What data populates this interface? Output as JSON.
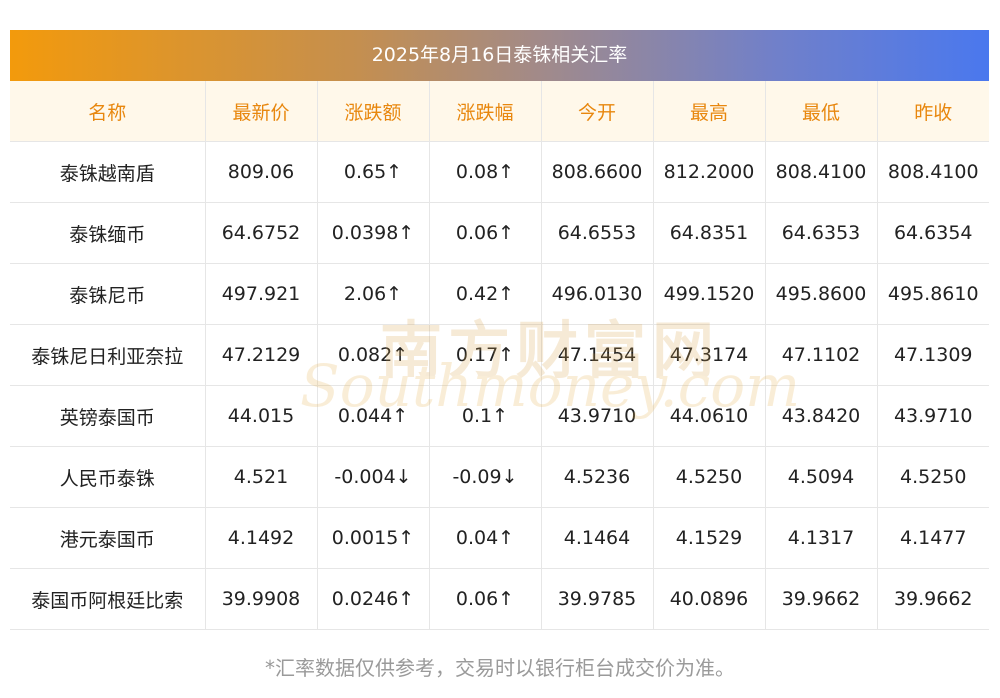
{
  "title": "2025年8月16日泰铢相关汇率",
  "headers": [
    "名称",
    "最新价",
    "涨跌额",
    "涨跌幅",
    "今开",
    "最高",
    "最低",
    "昨收"
  ],
  "rows": [
    {
      "name": "泰铢越南盾",
      "latest": "809.06",
      "change": "0.65↑",
      "pct": "0.08↑",
      "open": "808.6600",
      "high": "812.2000",
      "low": "808.4100",
      "prev": "808.4100",
      "dir": "up"
    },
    {
      "name": "泰铢缅币",
      "latest": "64.6752",
      "change": "0.0398↑",
      "pct": "0.06↑",
      "open": "64.6553",
      "high": "64.8351",
      "low": "64.6353",
      "prev": "64.6354",
      "dir": "up"
    },
    {
      "name": "泰铢尼币",
      "latest": "497.921",
      "change": "2.06↑",
      "pct": "0.42↑",
      "open": "496.0130",
      "high": "499.1520",
      "low": "495.8600",
      "prev": "495.8610",
      "dir": "up"
    },
    {
      "name": "泰铢尼日利亚奈拉",
      "latest": "47.2129",
      "change": "0.082↑",
      "pct": "0.17↑",
      "open": "47.1454",
      "high": "47.3174",
      "low": "47.1102",
      "prev": "47.1309",
      "dir": "up"
    },
    {
      "name": "英镑泰国币",
      "latest": "44.015",
      "change": "0.044↑",
      "pct": "0.1↑",
      "open": "43.9710",
      "high": "44.0610",
      "low": "43.8420",
      "prev": "43.9710",
      "dir": "up"
    },
    {
      "name": "人民币泰铢",
      "latest": "4.521",
      "change": "-0.004↓",
      "pct": "-0.09↓",
      "open": "4.5236",
      "high": "4.5250",
      "low": "4.5094",
      "prev": "4.5250",
      "dir": "down"
    },
    {
      "name": "港元泰国币",
      "latest": "4.1492",
      "change": "0.0015↑",
      "pct": "0.04↑",
      "open": "4.1464",
      "high": "4.1529",
      "low": "4.1317",
      "prev": "4.1477",
      "dir": "up"
    },
    {
      "name": "泰国币阿根廷比索",
      "latest": "39.9908",
      "change": "0.0246↑",
      "pct": "0.06↑",
      "open": "39.9785",
      "high": "40.0896",
      "low": "39.9662",
      "prev": "39.9662",
      "dir": "up"
    }
  ],
  "watermark": {
    "cn": "南方财富网",
    "en": "Southmoney.com"
  },
  "footnote": "*汇率数据仅供参考，交易时以银行柜台成交价为准。",
  "colors": {
    "up": "#f01e1e",
    "down": "#1f8a1f",
    "header_text": "#e8870e",
    "header_bg": "#fff8ea"
  }
}
